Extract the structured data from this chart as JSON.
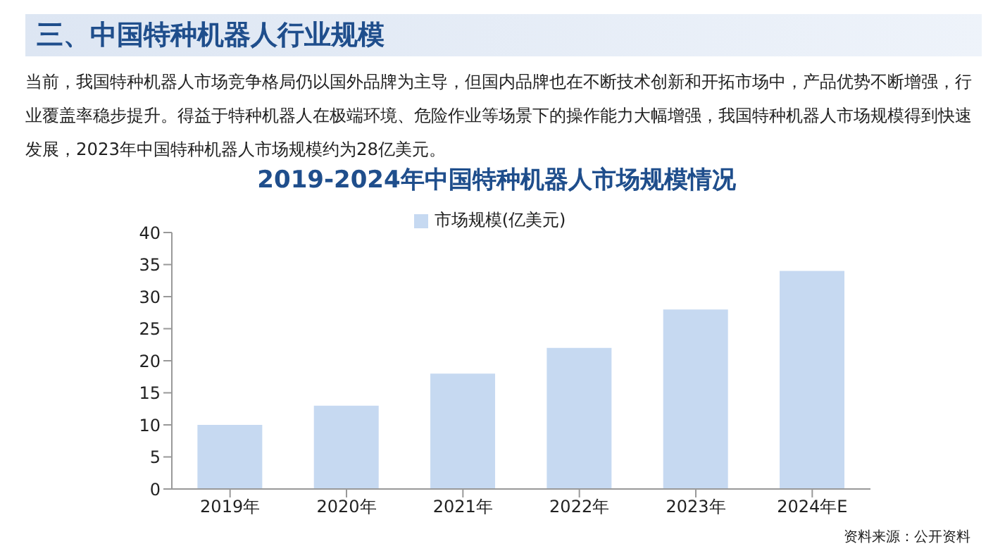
{
  "chart_data": {
    "type": "bar",
    "title": "2019-2024年中国特种机器人市场规模情况",
    "annotations": [
      "三、中国特种机器人行业规模",
      "当前，我国特种机器人市场竞争格局仍以国外品牌为主导，但国内品牌也在不断技术创新和开拓市场中，产品优势不断增强，行业覆盖率稳步提升。得益于特种机器人在极端环境、危险作业等场景下的操作能力大幅增强，我国特种机器人市场规模得到快速发展，2023年中国特种机器人市场规模约为28亿美元。",
      "资料来源：公开资料"
    ],
    "categories": [
      "2019年",
      "2020年",
      "2021年",
      "2022年",
      "2023年",
      "2024年E"
    ],
    "series": [
      {
        "name": "市场规模(亿美元)",
        "color": "#c6d9f1",
        "values": [
          10,
          13,
          18,
          22,
          28,
          34
        ]
      }
    ],
    "ylim": [
      0,
      40
    ],
    "yticks": [
      0,
      5,
      10,
      15,
      20,
      25,
      30,
      35,
      40
    ],
    "grid": false,
    "legend": "top"
  }
}
